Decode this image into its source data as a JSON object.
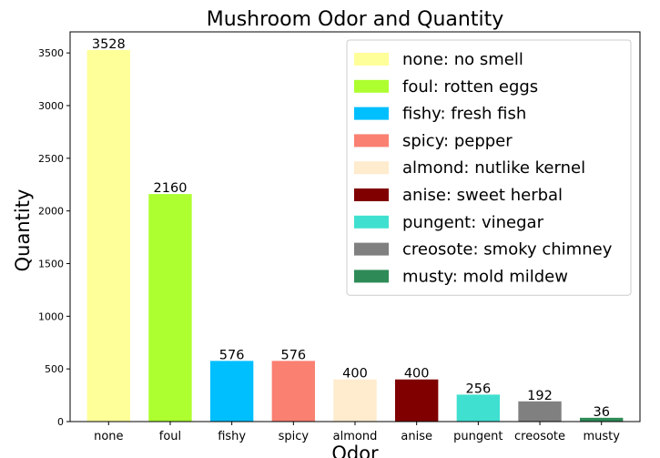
{
  "chart_data": {
    "type": "bar",
    "title": "Mushroom Odor and Quantity",
    "xlabel": "Odor",
    "ylabel": "Quantity",
    "ylim": [
      0,
      3700
    ],
    "yticks": [
      0,
      500,
      1000,
      1500,
      2000,
      2500,
      3000,
      3500
    ],
    "categories": [
      "none",
      "foul",
      "fishy",
      "spicy",
      "almond",
      "anise",
      "pungent",
      "creosote",
      "musty"
    ],
    "values": [
      3528,
      2160,
      576,
      576,
      400,
      400,
      256,
      192,
      36
    ],
    "colors": [
      "#FFFF99",
      "#ADFF2F",
      "#00BFFF",
      "#FA8072",
      "#FFEBCD",
      "#800000",
      "#40E0D0",
      "#808080",
      "#2E8B57"
    ],
    "legend": {
      "placement": "top-right",
      "entries": [
        "none: no smell",
        "foul: rotten eggs",
        "fishy: fresh fish",
        "spicy: pepper",
        "almond: nutlike kernel",
        "anise: sweet herbal",
        "pungent: vinegar",
        "creosote: smoky chimney",
        "musty: mold mildew"
      ]
    },
    "grid": false
  }
}
